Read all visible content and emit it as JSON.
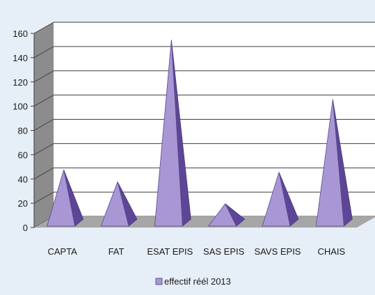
{
  "chart_data": {
    "type": "bar",
    "bar_shape": "pyramid-3d",
    "categories": [
      "CAPTA",
      "FAT",
      "ESAT EPIS",
      "SAS EPIS",
      "SAVS EPIS",
      "CHAIS"
    ],
    "series": [
      {
        "name": "effectif réél 2013",
        "values": [
          43,
          33,
          150,
          15,
          41,
          101
        ]
      }
    ],
    "ylim": [
      0,
      160
    ],
    "y_ticks": [
      "0",
      "20",
      "40",
      "60",
      "80",
      "100",
      "120",
      "140",
      "160"
    ],
    "grid": true,
    "legend_position": "bottom",
    "colors": {
      "background": "#e6eef7",
      "plot_back_wall": "#ffffff",
      "side_wall": "#8c8c8c",
      "floor": "#a6a6a6",
      "bar_front": "#a996d4",
      "bar_side": "#5d4696",
      "grid": "#3c3c3c"
    }
  }
}
